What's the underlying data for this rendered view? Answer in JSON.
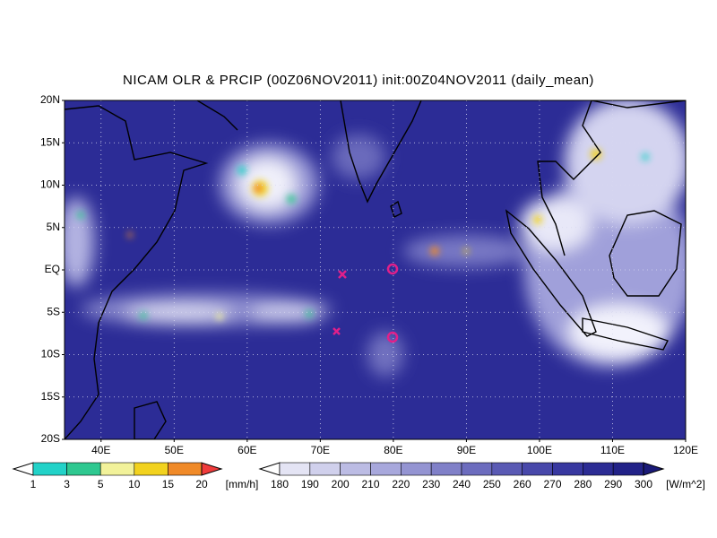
{
  "title": "NICAM OLR & PRCIP (00Z06NOV2011) init:00Z04NOV2011 (daily_mean)",
  "lat_ticks": [
    "20N",
    "15N",
    "10N",
    "5N",
    "EQ",
    "5S",
    "10S",
    "15S",
    "20S"
  ],
  "lon_ticks": [
    "40E",
    "50E",
    "60E",
    "70E",
    "80E",
    "90E",
    "100E",
    "110E",
    "120E"
  ],
  "precip_legend": {
    "labels": [
      "1",
      "3",
      "5",
      "10",
      "15",
      "20"
    ],
    "unit": "[mm/h]",
    "colors": [
      "#ffffff",
      "#22d2c8",
      "#2ec890",
      "#f2f29a",
      "#f2d21e",
      "#f08a28",
      "#f03c3c"
    ]
  },
  "olr_legend": {
    "labels": [
      "180",
      "190",
      "200",
      "210",
      "220",
      "230",
      "240",
      "250",
      "260",
      "270",
      "280",
      "290",
      "300"
    ],
    "unit": "[W/m^2]",
    "colors": [
      "#ffffff",
      "#e4e4f4",
      "#d0d0ec",
      "#bcbce4",
      "#a8a8dc",
      "#9494d2",
      "#8080c8",
      "#6c6cbe",
      "#5a5ab4",
      "#4848aa",
      "#3838a0",
      "#2c2c94",
      "#222288",
      "#1a1a78"
    ]
  }
}
